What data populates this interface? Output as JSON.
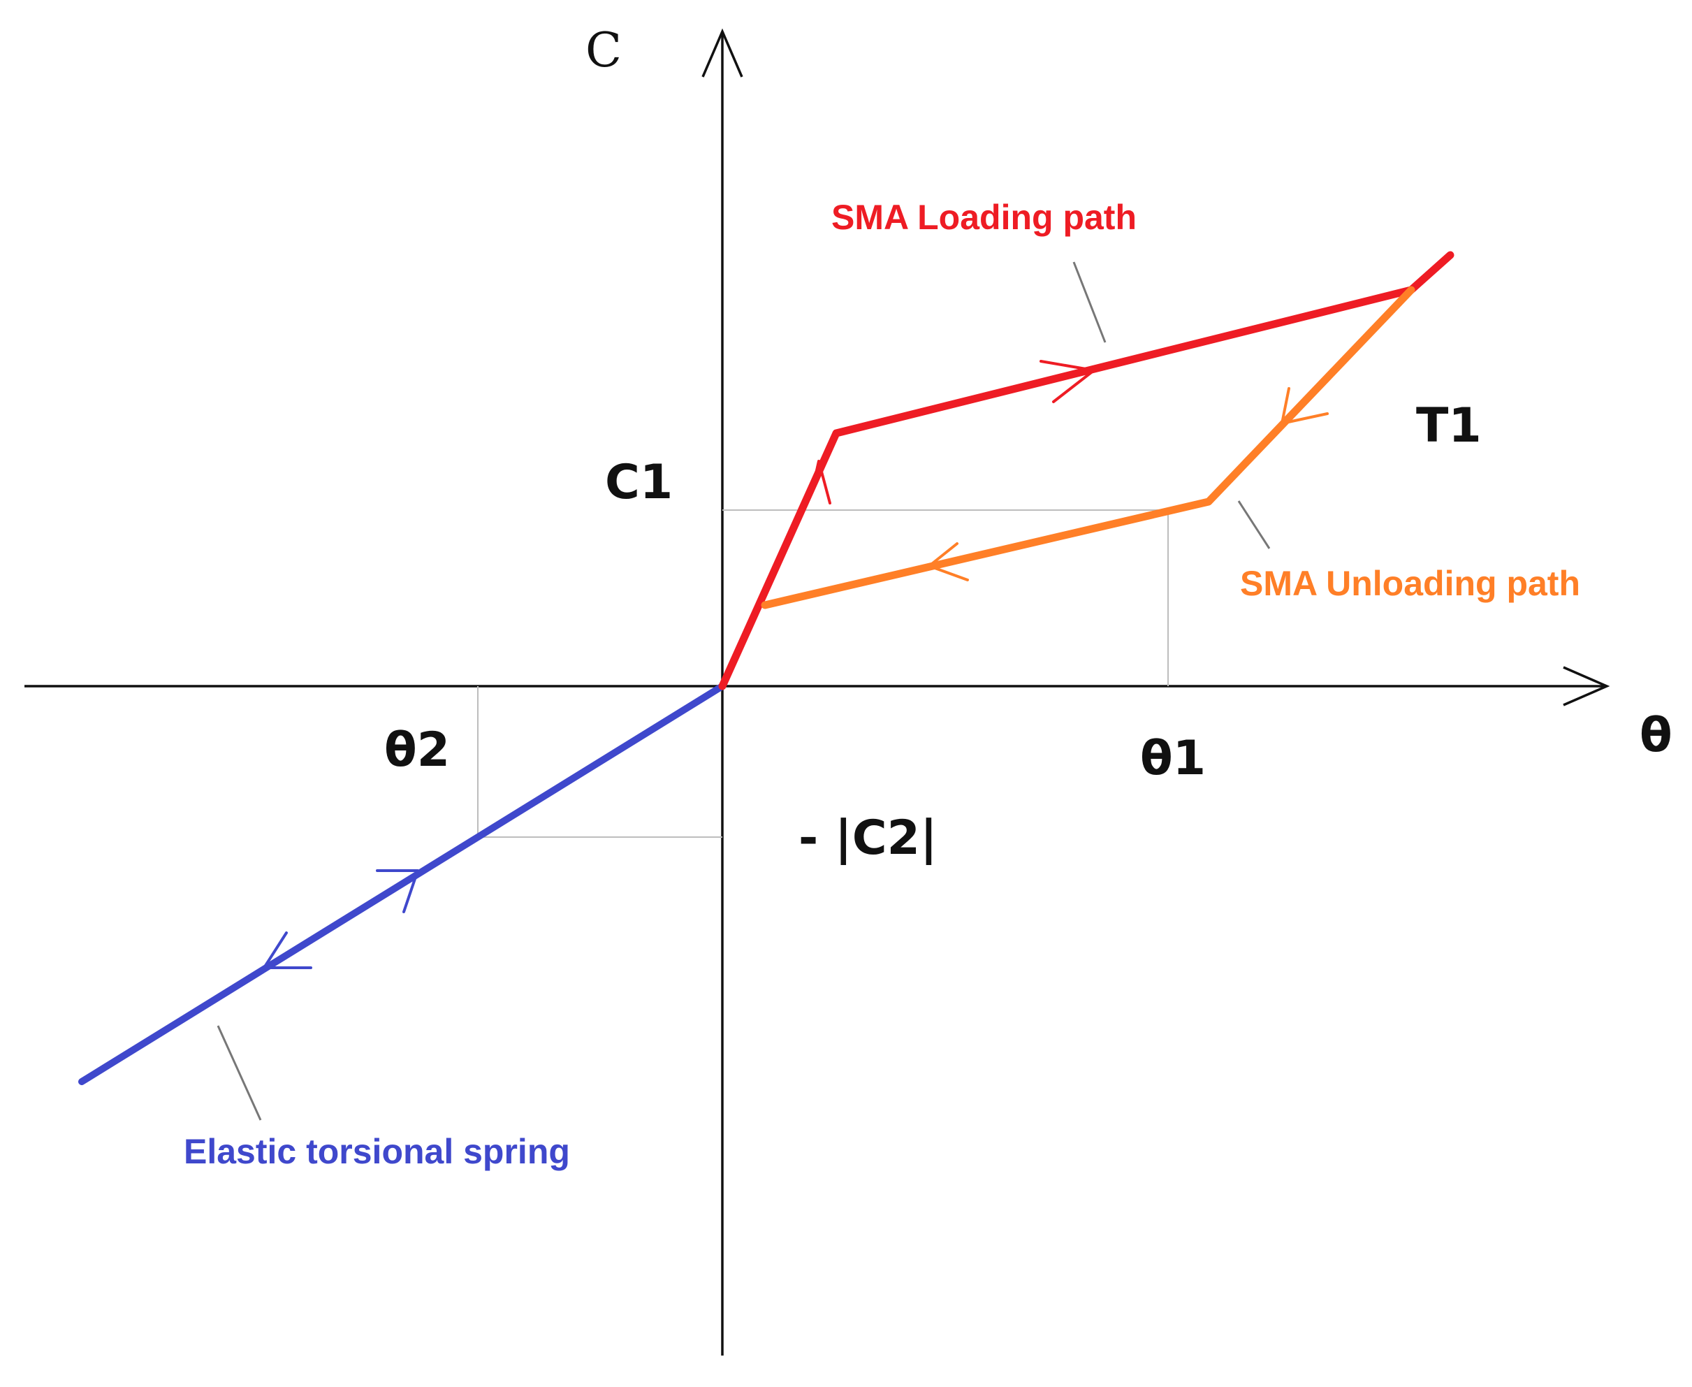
{
  "diagram": {
    "axes": {
      "x_label": "θ",
      "y_label": "C"
    },
    "markers": {
      "c1": "C1",
      "c2": "- |C2|",
      "theta1": "θ1",
      "theta2": "θ2",
      "t1": "T1"
    },
    "legend": {
      "loading": {
        "text": "SMA Loading path",
        "color": "#ee1c24"
      },
      "unloading": {
        "text": "SMA Unloading path",
        "color": "#ff7f27"
      },
      "elastic": {
        "text": "Elastic torsional spring",
        "color": "#3f48cc"
      }
    }
  }
}
